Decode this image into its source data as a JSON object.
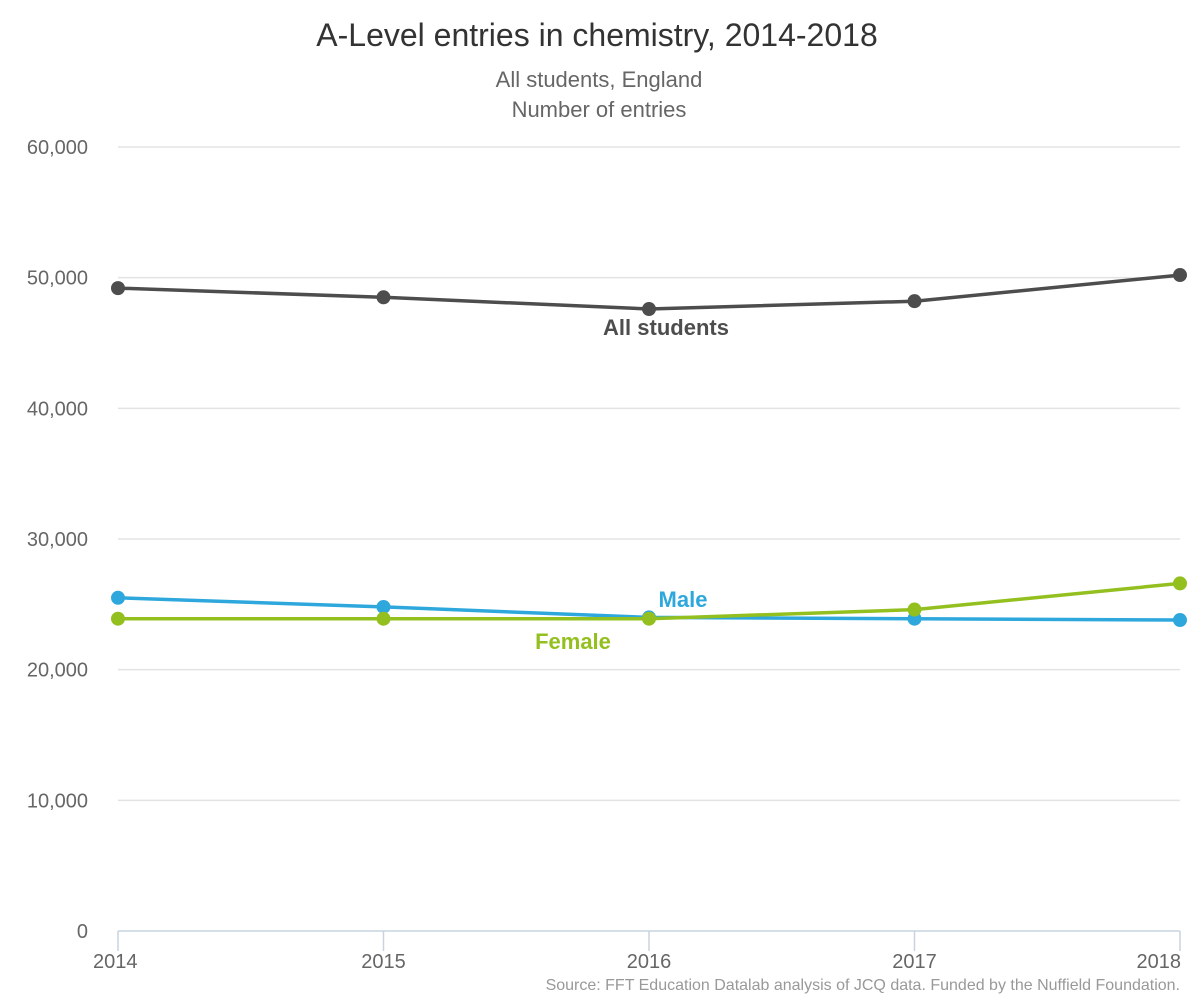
{
  "chart_data": {
    "type": "line",
    "title": "A-Level entries in chemistry, 2014-2018",
    "subtitle": [
      "All students, England",
      "Number of entries"
    ],
    "xlabel": "",
    "ylabel": "",
    "x": [
      "2014",
      "2015",
      "2016",
      "2017",
      "2018"
    ],
    "ylim": [
      0,
      60000
    ],
    "yticks": [
      0,
      10000,
      20000,
      30000,
      40000,
      50000,
      60000
    ],
    "ytick_labels": [
      "0",
      "10,000",
      "20,000",
      "30,000",
      "40,000",
      "50,000",
      "60,000"
    ],
    "grid": true,
    "legend": "inline labels",
    "series": [
      {
        "name": "All students",
        "color": "#4d4d4d",
        "values": [
          49200,
          48500,
          47600,
          48200,
          50200
        ]
      },
      {
        "name": "Male",
        "color": "#2ea8dc",
        "values": [
          25500,
          24800,
          24000,
          23900,
          23800
        ]
      },
      {
        "name": "Female",
        "color": "#93c01f",
        "values": [
          23900,
          23900,
          23900,
          24600,
          26600
        ]
      }
    ],
    "source": "Source: FFT Education Datalab analysis of JCQ data. Funded by the Nuffield Foundation."
  }
}
